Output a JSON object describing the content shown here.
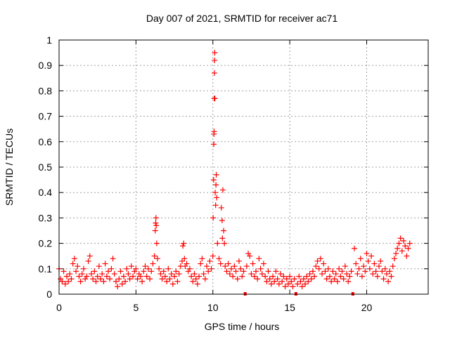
{
  "chart_data": {
    "type": "scatter",
    "title": "Day 007 of 2021, SRMTID for receiver ac71",
    "xlabel": "GPS time / hours",
    "ylabel": "SRMTID / TECUs",
    "xlim": [
      0,
      24
    ],
    "ylim": [
      0,
      1
    ],
    "xticks": [
      0,
      5,
      10,
      15,
      20
    ],
    "yticks": [
      0,
      0.1,
      0.2,
      0.3,
      0.4,
      0.5,
      0.6,
      0.7,
      0.8,
      0.9,
      1
    ],
    "xtick_labels": [
      "0",
      "5",
      "10",
      "15",
      "20"
    ],
    "ytick_labels": [
      "0",
      "0.1",
      "0.2",
      "0.3",
      "0.4",
      "0.5",
      "0.6",
      "0.7",
      "0.8",
      "0.9",
      "1"
    ],
    "grid": true,
    "marker": "+",
    "series_color": "#ff0000",
    "zero_markers_x": [
      12.1,
      15.4,
      19.1
    ],
    "series": [
      {
        "name": "SRMTID",
        "points": [
          [
            0.0,
            0.1
          ],
          [
            0.1,
            0.06
          ],
          [
            0.2,
            0.05
          ],
          [
            0.3,
            0.09
          ],
          [
            0.4,
            0.04
          ],
          [
            0.5,
            0.07
          ],
          [
            0.6,
            0.05
          ],
          [
            0.7,
            0.08
          ],
          [
            0.8,
            0.06
          ],
          [
            0.9,
            0.12
          ],
          [
            1.0,
            0.14
          ],
          [
            1.1,
            0.09
          ],
          [
            1.2,
            0.11
          ],
          [
            1.3,
            0.07
          ],
          [
            1.4,
            0.05
          ],
          [
            1.5,
            0.08
          ],
          [
            1.6,
            0.1
          ],
          [
            1.7,
            0.06
          ],
          [
            1.8,
            0.07
          ],
          [
            1.9,
            0.13
          ],
          [
            2.0,
            0.15
          ],
          [
            2.1,
            0.08
          ],
          [
            2.2,
            0.06
          ],
          [
            2.3,
            0.09
          ],
          [
            2.4,
            0.05
          ],
          [
            2.5,
            0.07
          ],
          [
            2.6,
            0.11
          ],
          [
            2.7,
            0.06
          ],
          [
            2.8,
            0.08
          ],
          [
            2.9,
            0.05
          ],
          [
            3.0,
            0.12
          ],
          [
            3.1,
            0.07
          ],
          [
            3.2,
            0.09
          ],
          [
            3.3,
            0.06
          ],
          [
            3.4,
            0.1
          ],
          [
            3.5,
            0.14
          ],
          [
            3.6,
            0.08
          ],
          [
            3.7,
            0.05
          ],
          [
            3.8,
            0.03
          ],
          [
            3.9,
            0.06
          ],
          [
            4.0,
            0.09
          ],
          [
            4.1,
            0.04
          ],
          [
            4.2,
            0.07
          ],
          [
            4.3,
            0.05
          ],
          [
            4.4,
            0.1
          ],
          [
            4.5,
            0.08
          ],
          [
            4.6,
            0.06
          ],
          [
            4.7,
            0.11
          ],
          [
            4.8,
            0.07
          ],
          [
            4.9,
            0.09
          ],
          [
            5.0,
            0.1
          ],
          [
            5.1,
            0.06
          ],
          [
            5.2,
            0.08
          ],
          [
            5.3,
            0.07
          ],
          [
            5.4,
            0.05
          ],
          [
            5.5,
            0.09
          ],
          [
            5.6,
            0.11
          ],
          [
            5.7,
            0.07
          ],
          [
            5.8,
            0.1
          ],
          [
            5.9,
            0.06
          ],
          [
            6.0,
            0.09
          ],
          [
            6.1,
            0.12
          ],
          [
            6.2,
            0.15
          ],
          [
            6.25,
            0.25
          ],
          [
            6.28,
            0.28
          ],
          [
            6.3,
            0.3
          ],
          [
            6.32,
            0.27
          ],
          [
            6.35,
            0.2
          ],
          [
            6.4,
            0.14
          ],
          [
            6.5,
            0.1
          ],
          [
            6.6,
            0.08
          ],
          [
            6.7,
            0.06
          ],
          [
            6.8,
            0.09
          ],
          [
            6.9,
            0.07
          ],
          [
            7.0,
            0.05
          ],
          [
            7.1,
            0.1
          ],
          [
            7.2,
            0.06
          ],
          [
            7.3,
            0.08
          ],
          [
            7.4,
            0.04
          ],
          [
            7.5,
            0.07
          ],
          [
            7.6,
            0.09
          ],
          [
            7.7,
            0.05
          ],
          [
            7.8,
            0.08
          ],
          [
            7.9,
            0.11
          ],
          [
            8.0,
            0.13
          ],
          [
            8.05,
            0.19
          ],
          [
            8.1,
            0.2
          ],
          [
            8.15,
            0.14
          ],
          [
            8.2,
            0.11
          ],
          [
            8.3,
            0.12
          ],
          [
            8.4,
            0.09
          ],
          [
            8.5,
            0.1
          ],
          [
            8.6,
            0.07
          ],
          [
            8.7,
            0.05
          ],
          [
            8.8,
            0.08
          ],
          [
            8.9,
            0.06
          ],
          [
            9.0,
            0.04
          ],
          [
            9.1,
            0.07
          ],
          [
            9.2,
            0.12
          ],
          [
            9.3,
            0.14
          ],
          [
            9.4,
            0.08
          ],
          [
            9.5,
            0.06
          ],
          [
            9.6,
            0.11
          ],
          [
            9.7,
            0.09
          ],
          [
            9.8,
            0.13
          ],
          [
            9.9,
            0.1
          ],
          [
            10.0,
            0.15
          ],
          [
            10.02,
            0.3
          ],
          [
            10.05,
            0.45
          ],
          [
            10.06,
            0.59
          ],
          [
            10.07,
            0.63
          ],
          [
            10.08,
            0.64
          ],
          [
            10.09,
            0.77
          ],
          [
            10.1,
            0.87
          ],
          [
            10.11,
            0.92
          ],
          [
            10.12,
            0.95
          ],
          [
            10.13,
            0.77
          ],
          [
            10.15,
            0.4
          ],
          [
            10.18,
            0.35
          ],
          [
            10.2,
            0.43
          ],
          [
            10.22,
            0.47
          ],
          [
            10.25,
            0.38
          ],
          [
            10.3,
            0.2
          ],
          [
            10.4,
            0.14
          ],
          [
            10.5,
            0.12
          ],
          [
            10.55,
            0.34
          ],
          [
            10.6,
            0.29
          ],
          [
            10.62,
            0.22
          ],
          [
            10.65,
            0.41
          ],
          [
            10.7,
            0.25
          ],
          [
            10.75,
            0.2
          ],
          [
            10.8,
            0.11
          ],
          [
            10.9,
            0.09
          ],
          [
            11.0,
            0.12
          ],
          [
            11.1,
            0.08
          ],
          [
            11.2,
            0.1
          ],
          [
            11.3,
            0.07
          ],
          [
            11.4,
            0.11
          ],
          [
            11.5,
            0.09
          ],
          [
            11.6,
            0.06
          ],
          [
            11.7,
            0.13
          ],
          [
            11.8,
            0.1
          ],
          [
            11.9,
            0.07
          ],
          [
            12.0,
            0.09
          ],
          [
            12.2,
            0.11
          ],
          [
            12.3,
            0.16
          ],
          [
            12.4,
            0.15
          ],
          [
            12.5,
            0.08
          ],
          [
            12.6,
            0.12
          ],
          [
            12.7,
            0.07
          ],
          [
            12.8,
            0.09
          ],
          [
            12.9,
            0.06
          ],
          [
            13.0,
            0.14
          ],
          [
            13.1,
            0.1
          ],
          [
            13.2,
            0.08
          ],
          [
            13.3,
            0.12
          ],
          [
            13.4,
            0.07
          ],
          [
            13.5,
            0.05
          ],
          [
            13.6,
            0.09
          ],
          [
            13.7,
            0.06
          ],
          [
            13.8,
            0.04
          ],
          [
            13.9,
            0.07
          ],
          [
            14.0,
            0.05
          ],
          [
            14.1,
            0.09
          ],
          [
            14.2,
            0.06
          ],
          [
            14.3,
            0.04
          ],
          [
            14.4,
            0.08
          ],
          [
            14.5,
            0.05
          ],
          [
            14.6,
            0.07
          ],
          [
            14.7,
            0.03
          ],
          [
            14.8,
            0.06
          ],
          [
            14.9,
            0.04
          ],
          [
            15.0,
            0.07
          ],
          [
            15.1,
            0.05
          ],
          [
            15.2,
            0.03
          ],
          [
            15.3,
            0.06
          ],
          [
            15.5,
            0.04
          ],
          [
            15.6,
            0.07
          ],
          [
            15.7,
            0.05
          ],
          [
            15.8,
            0.03
          ],
          [
            15.9,
            0.06
          ],
          [
            16.0,
            0.04
          ],
          [
            16.1,
            0.07
          ],
          [
            16.2,
            0.05
          ],
          [
            16.3,
            0.08
          ],
          [
            16.4,
            0.06
          ],
          [
            16.5,
            0.09
          ],
          [
            16.6,
            0.07
          ],
          [
            16.7,
            0.11
          ],
          [
            16.8,
            0.13
          ],
          [
            16.9,
            0.1
          ],
          [
            17.0,
            0.14
          ],
          [
            17.1,
            0.08
          ],
          [
            17.2,
            0.12
          ],
          [
            17.3,
            0.09
          ],
          [
            17.4,
            0.06
          ],
          [
            17.5,
            0.1
          ],
          [
            17.6,
            0.07
          ],
          [
            17.7,
            0.05
          ],
          [
            17.8,
            0.09
          ],
          [
            17.9,
            0.06
          ],
          [
            18.0,
            0.08
          ],
          [
            18.1,
            0.05
          ],
          [
            18.2,
            0.1
          ],
          [
            18.3,
            0.07
          ],
          [
            18.4,
            0.09
          ],
          [
            18.5,
            0.06
          ],
          [
            18.6,
            0.11
          ],
          [
            18.7,
            0.08
          ],
          [
            18.8,
            0.05
          ],
          [
            18.9,
            0.07
          ],
          [
            19.0,
            0.09
          ],
          [
            19.2,
            0.18
          ],
          [
            19.3,
            0.12
          ],
          [
            19.4,
            0.08
          ],
          [
            19.5,
            0.1
          ],
          [
            19.6,
            0.14
          ],
          [
            19.7,
            0.07
          ],
          [
            19.8,
            0.11
          ],
          [
            19.9,
            0.09
          ],
          [
            20.0,
            0.16
          ],
          [
            20.1,
            0.13
          ],
          [
            20.2,
            0.1
          ],
          [
            20.3,
            0.15
          ],
          [
            20.4,
            0.08
          ],
          [
            20.5,
            0.12
          ],
          [
            20.6,
            0.09
          ],
          [
            20.7,
            0.07
          ],
          [
            20.8,
            0.11
          ],
          [
            20.9,
            0.13
          ],
          [
            21.0,
            0.09
          ],
          [
            21.1,
            0.06
          ],
          [
            21.2,
            0.1
          ],
          [
            21.3,
            0.08
          ],
          [
            21.4,
            0.05
          ],
          [
            21.5,
            0.09
          ],
          [
            21.6,
            0.07
          ],
          [
            21.7,
            0.11
          ],
          [
            21.8,
            0.14
          ],
          [
            21.9,
            0.16
          ],
          [
            22.0,
            0.18
          ],
          [
            22.1,
            0.2
          ],
          [
            22.2,
            0.22
          ],
          [
            22.3,
            0.17
          ],
          [
            22.4,
            0.21
          ],
          [
            22.5,
            0.19
          ],
          [
            22.6,
            0.15
          ],
          [
            22.7,
            0.18
          ],
          [
            22.8,
            0.2
          ]
        ]
      }
    ]
  }
}
